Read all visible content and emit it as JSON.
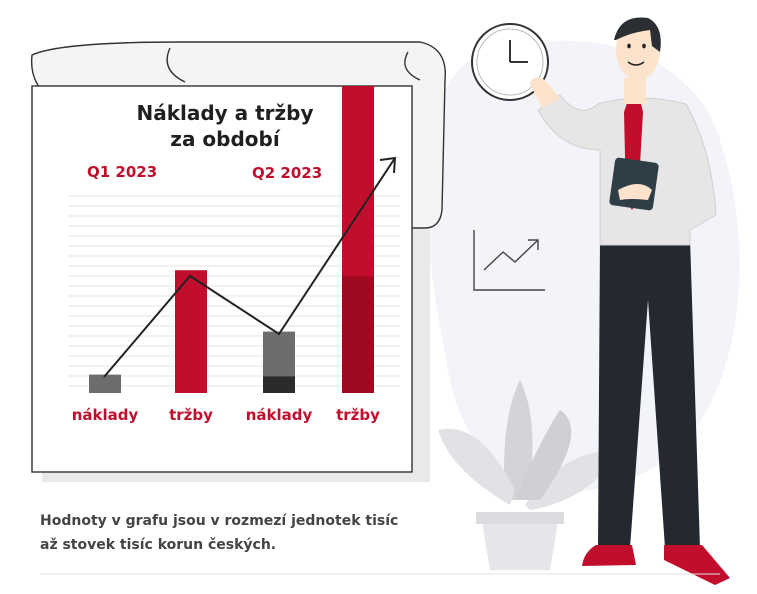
{
  "chart_data": {
    "type": "bar",
    "title": [
      "Náklady a tržby",
      "za období"
    ],
    "groups": [
      "Q1 2023",
      "Q2 2023"
    ],
    "categories": [
      "náklady",
      "tržby",
      "náklady",
      "tržby"
    ],
    "values": [
      6,
      40,
      20,
      100
    ],
    "note": "values are relative bar heights (no axis scale printed)",
    "colors": {
      "naklady": "#6d6d6d",
      "trzby": "#c20e2d",
      "trzby_dark": "#9d0a22",
      "naklady_dark": "#2b2b2b"
    },
    "trend_arrow": true,
    "grid": true
  },
  "caption": [
    "Hodnoty v grafu jsou v rozmezí jednotek tisíc",
    "až stovek tisíc korun českých."
  ],
  "colors": {
    "accent": "#c20e2d",
    "text": "#444444"
  }
}
